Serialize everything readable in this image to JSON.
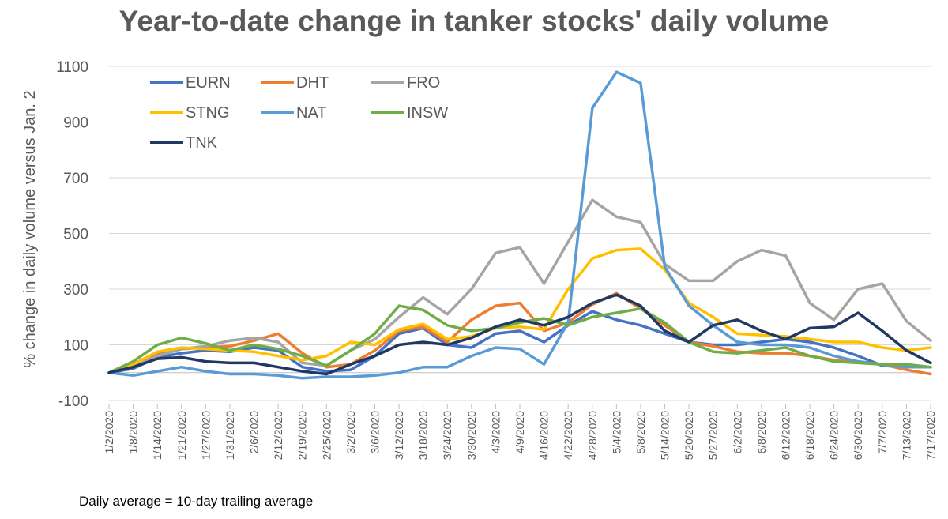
{
  "footnote": "Daily average = 10-day trailing average",
  "chart_data": {
    "type": "line",
    "title": "Year-to-date change in tanker stocks' daily volume",
    "ylabel": "% change in daily volume versus Jan. 2",
    "xlabel": "",
    "ylim": [
      -100,
      1100
    ],
    "yticks": [
      -100,
      100,
      300,
      500,
      700,
      900,
      1100
    ],
    "grid": "horizontal",
    "legend_position": "top-left",
    "x": [
      "1/2/2020",
      "1/8/2020",
      "1/14/2020",
      "1/21/2020",
      "1/27/2020",
      "1/31/2020",
      "2/6/2020",
      "2/12/2020",
      "2/19/2020",
      "2/25/2020",
      "3/2/2020",
      "3/6/2020",
      "3/12/2020",
      "3/18/2020",
      "3/24/2020",
      "3/30/2020",
      "4/3/2020",
      "4/9/2020",
      "4/16/2020",
      "4/22/2020",
      "4/28/2020",
      "5/4/2020",
      "5/8/2020",
      "5/14/2020",
      "5/20/2020",
      "5/27/2020",
      "6/2/2020",
      "6/8/2020",
      "6/12/2020",
      "6/18/2020",
      "6/24/2020",
      "6/30/2020",
      "7/7/2020",
      "7/13/2020",
      "7/17/2020"
    ],
    "series": [
      {
        "name": "EURN",
        "color": "#4472C4",
        "values": [
          0,
          15,
          55,
          70,
          80,
          75,
          90,
          80,
          20,
          5,
          10,
          60,
          140,
          160,
          100,
          90,
          140,
          150,
          110,
          170,
          220,
          190,
          170,
          140,
          110,
          100,
          100,
          110,
          120,
          110,
          90,
          60,
          25,
          20,
          20
        ]
      },
      {
        "name": "DHT",
        "color": "#ED7D31",
        "values": [
          0,
          20,
          65,
          85,
          90,
          95,
          115,
          140,
          70,
          20,
          30,
          80,
          150,
          165,
          110,
          190,
          240,
          250,
          150,
          180,
          245,
          285,
          230,
          170,
          110,
          95,
          75,
          70,
          70,
          60,
          45,
          40,
          30,
          10,
          -5
        ]
      },
      {
        "name": "FRO",
        "color": "#A5A5A5",
        "values": [
          0,
          25,
          60,
          85,
          95,
          115,
          125,
          110,
          35,
          25,
          80,
          120,
          200,
          270,
          210,
          300,
          430,
          450,
          320,
          470,
          620,
          560,
          540,
          390,
          330,
          330,
          400,
          440,
          420,
          250,
          190,
          300,
          320,
          185,
          115
        ]
      },
      {
        "name": "STNG",
        "color": "#FFC000",
        "values": [
          0,
          30,
          75,
          90,
          85,
          80,
          75,
          60,
          45,
          60,
          110,
          100,
          155,
          175,
          120,
          130,
          160,
          165,
          155,
          300,
          410,
          440,
          445,
          370,
          250,
          200,
          140,
          135,
          130,
          120,
          110,
          110,
          90,
          80,
          90
        ]
      },
      {
        "name": "NAT",
        "color": "#5B9BD5",
        "values": [
          0,
          -10,
          5,
          20,
          5,
          -5,
          -5,
          -10,
          -20,
          -15,
          -15,
          -10,
          0,
          20,
          20,
          60,
          90,
          85,
          30,
          180,
          950,
          1080,
          1040,
          380,
          240,
          170,
          110,
          100,
          100,
          90,
          60,
          40,
          30,
          20,
          20
        ]
      },
      {
        "name": "INSW",
        "color": "#70AD47",
        "values": [
          0,
          40,
          100,
          125,
          105,
          80,
          100,
          85,
          60,
          25,
          80,
          140,
          240,
          225,
          170,
          150,
          160,
          180,
          195,
          170,
          200,
          215,
          230,
          180,
          110,
          75,
          70,
          80,
          90,
          60,
          40,
          35,
          30,
          30,
          20
        ]
      },
      {
        "name": "TNK",
        "color": "#203864",
        "values": [
          0,
          20,
          50,
          55,
          40,
          35,
          35,
          20,
          5,
          -5,
          30,
          60,
          100,
          110,
          100,
          125,
          165,
          190,
          170,
          200,
          250,
          280,
          240,
          150,
          110,
          170,
          190,
          150,
          120,
          160,
          165,
          215,
          150,
          80,
          35
        ]
      }
    ]
  }
}
